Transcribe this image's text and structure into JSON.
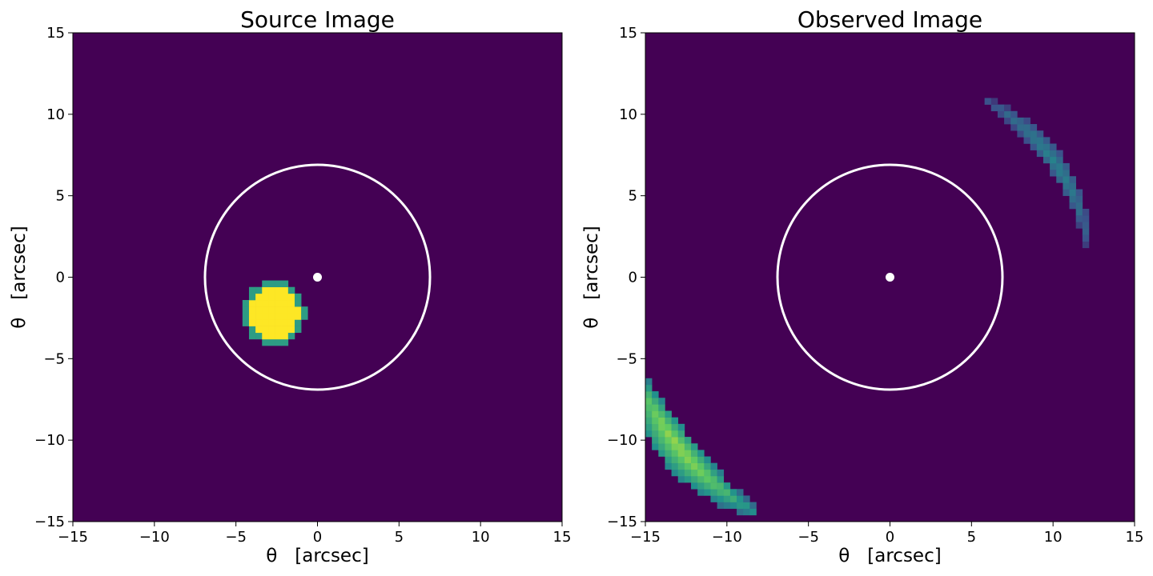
{
  "chart_data": [
    {
      "type": "heatmap",
      "title": "Source Image",
      "xlabel": "θ   [arcsec]",
      "ylabel": "θ   [arcsec]",
      "xlim": [
        -15,
        15
      ],
      "ylim": [
        -15,
        15
      ],
      "xticks": [
        -15,
        -10,
        -5,
        0,
        5,
        10,
        15
      ],
      "yticks": [
        -15,
        -10,
        -5,
        0,
        5,
        10,
        15
      ],
      "xtick_labels": [
        "−15",
        "−10",
        "−5",
        "0",
        "5",
        "10",
        "15"
      ],
      "ytick_labels": [
        "−15",
        "−10",
        "−5",
        "0",
        "5",
        "10",
        "15"
      ],
      "background": "#440154",
      "colormap": "viridis",
      "einstein_ring": {
        "cx": 0,
        "cy": 0,
        "r": 6.9,
        "color": "#ffffff"
      },
      "lens_center": {
        "x": 0,
        "y": 0,
        "color": "#ffffff"
      },
      "source": {
        "cx": -2.7,
        "cy": -2.2,
        "r": 1.6,
        "peak_color": "#fde725"
      }
    },
    {
      "type": "heatmap",
      "title": "Observed Image",
      "xlabel": "θ   [arcsec]",
      "ylabel": "θ   [arcsec]",
      "xlim": [
        -15,
        15
      ],
      "ylim": [
        -15,
        15
      ],
      "xticks": [
        -15,
        -10,
        -5,
        0,
        5,
        10,
        15
      ],
      "yticks": [
        -15,
        -10,
        -5,
        0,
        5,
        10,
        15
      ],
      "xtick_labels": [
        "−15",
        "−10",
        "−5",
        "0",
        "5",
        "10",
        "15"
      ],
      "ytick_labels": [
        "−15",
        "−10",
        "−5",
        "0",
        "5",
        "10",
        "15"
      ],
      "background": "#440154",
      "colormap": "viridis",
      "einstein_ring": {
        "cx": 0,
        "cy": 0,
        "r": 6.9,
        "color": "#ffffff"
      },
      "lens_center": {
        "x": 0,
        "y": 0,
        "color": "#ffffff"
      },
      "arcs": [
        {
          "name": "outer-arc",
          "radius": 16.6,
          "angle_start": 197,
          "angle_end": 240,
          "inner_width": 0.9,
          "outer_width": 1.3,
          "brightness": 0.85
        },
        {
          "name": "inner-arc",
          "radius": 12.3,
          "angle_start": 9,
          "angle_end": 62,
          "inner_width": 0.5,
          "outer_width": 0.6,
          "brightness": 0.45
        }
      ]
    }
  ]
}
